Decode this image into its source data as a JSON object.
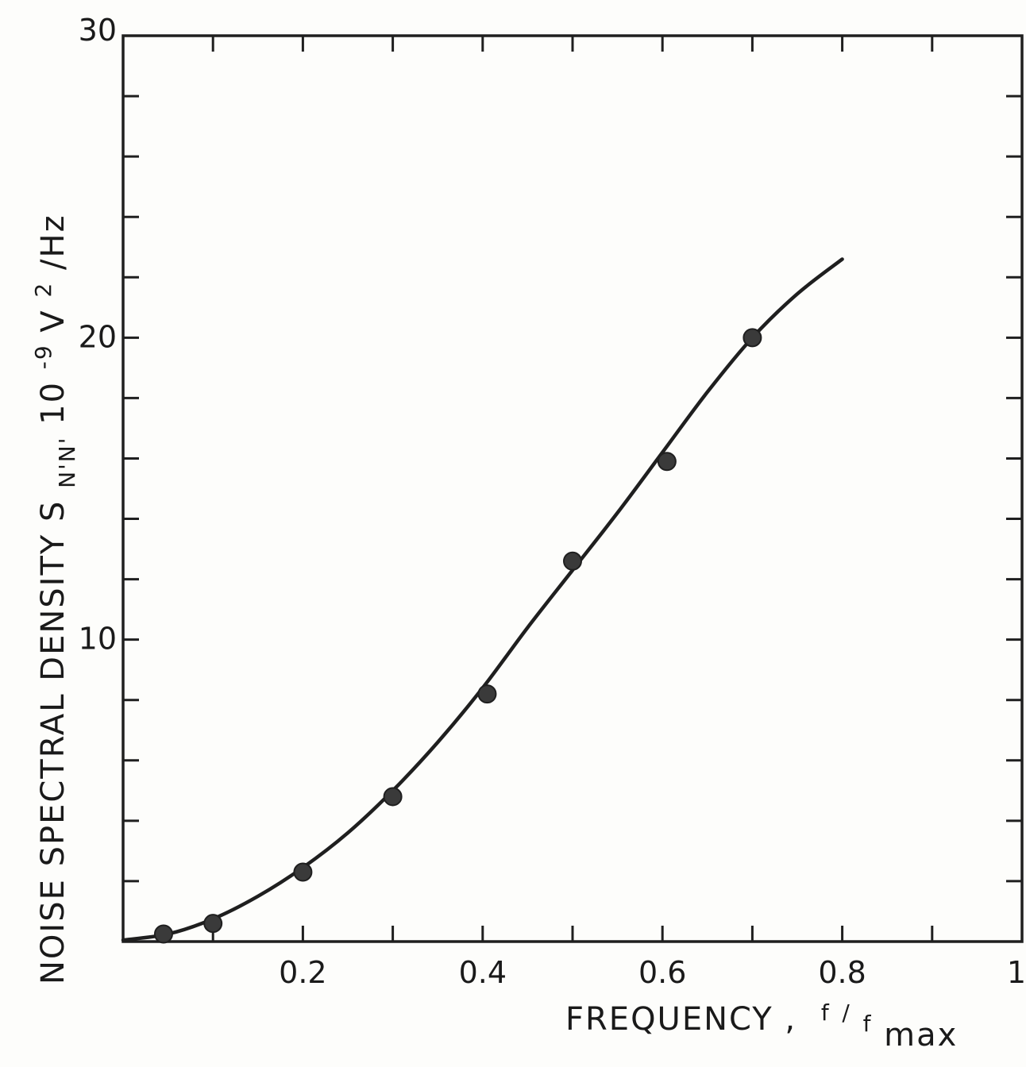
{
  "chart_data": {
    "type": "scatter",
    "xlabel": {
      "main": "FREQUENCY ,",
      "f": "f",
      "slash": "/",
      "fmax": "f",
      "fmax_sub": "max"
    },
    "ylabel": {
      "main": "NOISE SPECTRAL DENSITY S",
      "sub": "N'N'",
      "unit_prefix": "10",
      "unit_exp": "-9",
      "unit_v": "V",
      "unit_v_exp": "2",
      "unit_tail": "/Hz"
    },
    "xlim": [
      0,
      1
    ],
    "ylim": [
      0,
      30
    ],
    "x_ticks_labeled": [
      {
        "value": 0.2,
        "label": "0.2"
      },
      {
        "value": 0.4,
        "label": "0.4"
      },
      {
        "value": 0.6,
        "label": "0.6"
      },
      {
        "value": 0.8,
        "label": "0.8"
      },
      {
        "value": 1.0,
        "label": "1"
      }
    ],
    "x_ticks_minor": [
      0.1,
      0.3,
      0.5,
      0.7,
      0.9
    ],
    "y_ticks_labeled": [
      {
        "value": 10,
        "label": "10"
      },
      {
        "value": 20,
        "label": "20"
      },
      {
        "value": 30,
        "label": "30"
      }
    ],
    "y_ticks_minor": [
      2,
      4,
      6,
      8,
      12,
      14,
      16,
      18,
      22,
      24,
      26,
      28
    ],
    "series": [
      {
        "kind": "points",
        "x": [
          0.045,
          0.1,
          0.2,
          0.3,
          0.405,
          0.5,
          0.605,
          0.7
        ],
        "y": [
          0.25,
          0.6,
          2.3,
          4.8,
          8.2,
          12.6,
          15.9,
          20.0
        ]
      },
      {
        "kind": "curve",
        "x": [
          0.0,
          0.05,
          0.1,
          0.15,
          0.2,
          0.25,
          0.3,
          0.35,
          0.4,
          0.45,
          0.5,
          0.55,
          0.6,
          0.65,
          0.7,
          0.75,
          0.8
        ],
        "y": [
          0.05,
          0.25,
          0.75,
          1.5,
          2.45,
          3.6,
          5.0,
          6.6,
          8.4,
          10.4,
          12.3,
          14.2,
          16.2,
          18.2,
          20.0,
          21.45,
          22.6
        ]
      }
    ],
    "grid": false,
    "colors": {
      "ink": "#1f1f1f",
      "point": "#3a3a3a"
    }
  }
}
